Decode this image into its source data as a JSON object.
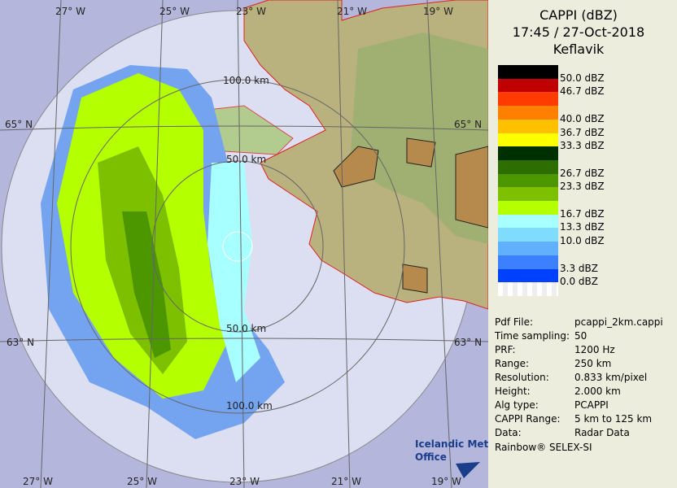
{
  "header": {
    "title": "CAPPI (dBZ)",
    "time": "17:45 / 27-Oct-2018",
    "site": "Keflavik"
  },
  "scale": {
    "colors": [
      "#000000",
      "#c00000",
      "#ff3c00",
      "#ff8000",
      "#ffc000",
      "#ffff00",
      "#003000",
      "#2e6e00",
      "#4c9600",
      "#7cc000",
      "#b4ff00",
      "#a8ffff",
      "#80dcff",
      "#60b0ff",
      "#3c80ff",
      "#0040ff",
      "#ffffff"
    ],
    "labels": [
      "50.0 dBZ",
      "46.7 dBZ",
      null,
      "40.0 dBZ",
      "36.7 dBZ",
      "33.3 dBZ",
      null,
      "26.7 dBZ",
      "23.3 dBZ",
      null,
      "16.7 dBZ",
      "13.3 dBZ",
      "10.0 dBZ",
      null,
      "3.3 dBZ",
      "0.0 dBZ"
    ]
  },
  "info": [
    [
      "Pdf File:",
      "pcappi_2km.cappi"
    ],
    [
      "Time sampling:",
      "50"
    ],
    [
      "PRF:",
      "1200 Hz"
    ],
    [
      "Range:",
      "250 km"
    ],
    [
      "Resolution:",
      "0.833 km/pixel"
    ],
    [
      "Height:",
      "2.000 km"
    ],
    [
      "Alg type:",
      "PCAPPI"
    ],
    [
      "CAPPI Range:",
      "5 km to 125 km"
    ],
    [
      "Data:",
      "Radar Data"
    ]
  ],
  "footer": "Rainbow® SELEX-SI",
  "map": {
    "lon_top": [
      "27° W",
      "25° W",
      "23° W",
      "21° W",
      "19° W"
    ],
    "lon_bottom": [
      "27° W",
      "25° W",
      "23° W",
      "21° W",
      "19° W"
    ],
    "lat_left": [
      "65° N",
      "63° N"
    ],
    "lat_right": [
      "65° N",
      "63° N"
    ],
    "rings": [
      "100.0 km",
      "50.0 km",
      "50.0 km",
      "100.0 km"
    ],
    "logo": [
      "Icelandic Met",
      "Office"
    ]
  }
}
